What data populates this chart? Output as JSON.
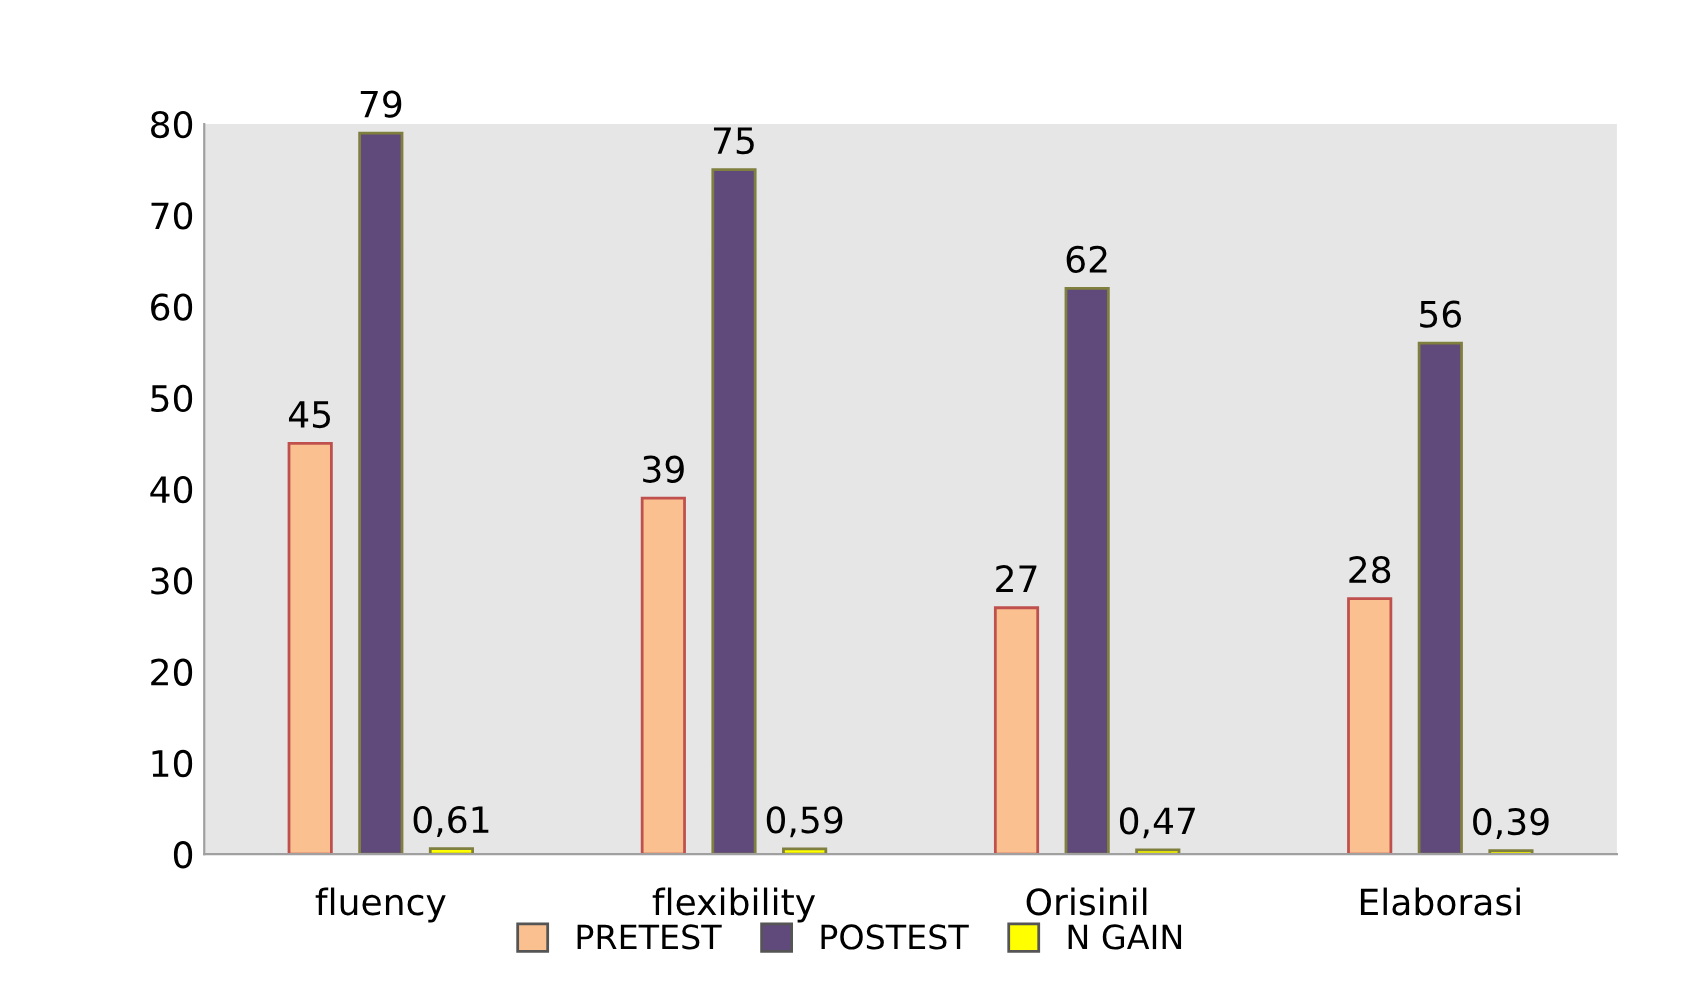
{
  "chart_data": {
    "type": "bar",
    "categories": [
      "fluency",
      "flexibility",
      "Orisinil",
      "Elaborasi"
    ],
    "series": [
      {
        "name": "PRETEST",
        "color": "#fac090",
        "values": [
          45,
          39,
          27,
          28
        ],
        "value_labels": [
          "45",
          "39",
          "27",
          "28"
        ]
      },
      {
        "name": "POSTEST",
        "color": "#604a7b",
        "values": [
          79,
          75,
          62,
          56
        ],
        "value_labels": [
          "79",
          "75",
          "62",
          "56"
        ]
      },
      {
        "name": "N GAIN",
        "color": "#ffff00",
        "values": [
          0.61,
          0.59,
          0.47,
          0.39
        ],
        "value_labels": [
          "0,61",
          "0,59",
          "0,47",
          "0,39"
        ]
      }
    ],
    "ylim": [
      0,
      80
    ],
    "yticks": [
      0,
      10,
      20,
      30,
      40,
      50,
      60,
      70,
      80
    ],
    "grid": false,
    "legend": "bottom"
  }
}
